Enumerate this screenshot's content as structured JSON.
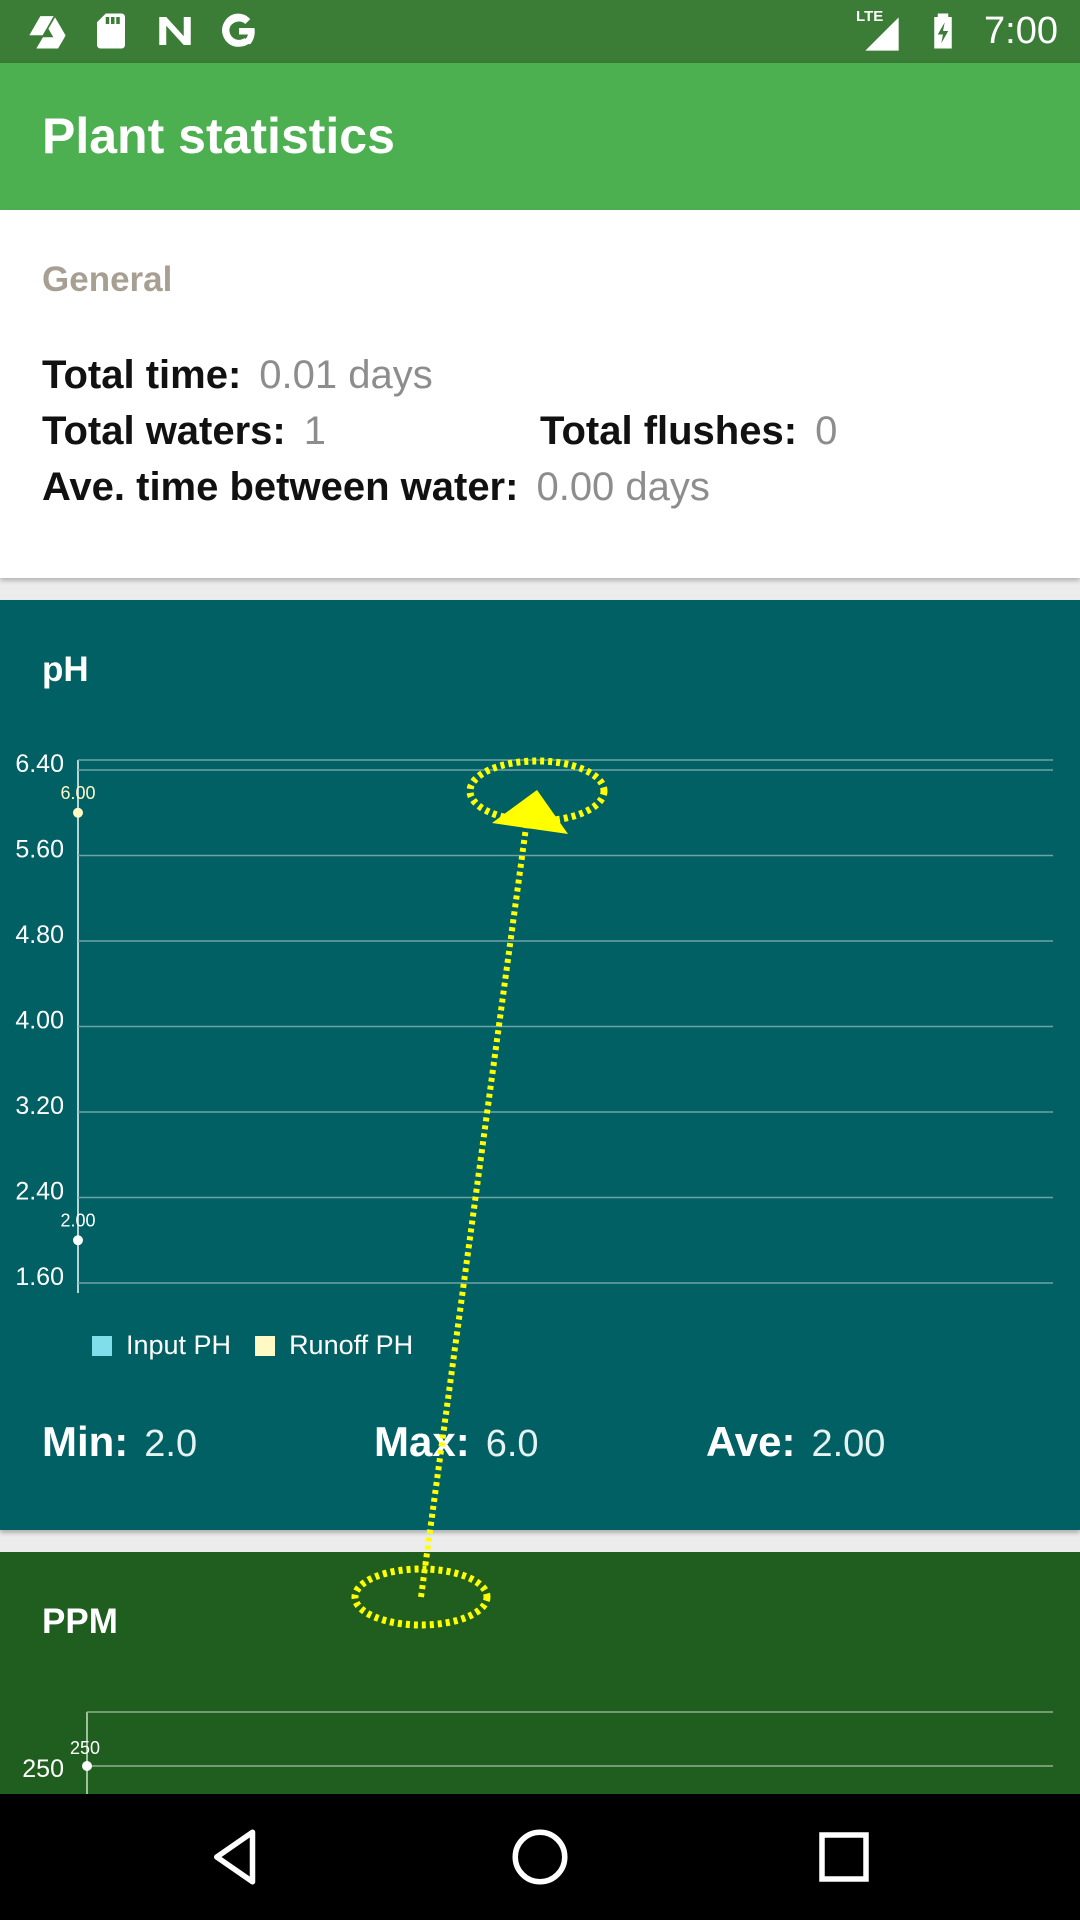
{
  "status_bar": {
    "icons_left": [
      "drive-icon",
      "sd-card-icon",
      "n-logo-icon",
      "google-icon"
    ],
    "network": "LTE",
    "time": "7:00"
  },
  "app_bar": {
    "title": "Plant statistics"
  },
  "general": {
    "section_label": "General",
    "total_time": {
      "label": "Total time:",
      "value": "0.01 days"
    },
    "total_waters": {
      "label": "Total waters:",
      "value": "1"
    },
    "total_flushes": {
      "label": "Total flushes:",
      "value": "0"
    },
    "ave_time": {
      "label": "Ave. time between water:",
      "value": "0.00 days"
    }
  },
  "ph_card": {
    "title": "pH",
    "legend": [
      {
        "name": "Input PH",
        "color": "#80deea"
      },
      {
        "name": "Runoff PH",
        "color": "#fff9c4"
      }
    ],
    "summary": {
      "min_label": "Min:",
      "min_value": "2.0",
      "max_label": "Max:",
      "max_value": "6.0",
      "ave_label": "Ave:",
      "ave_value": "2.00"
    }
  },
  "ppm_card": {
    "title": "PPM",
    "y_tick": "250",
    "point_label": "250"
  },
  "chart_data": [
    {
      "type": "scatter",
      "title": "pH",
      "y_ticks": [
        "1.60",
        "2.40",
        "3.20",
        "4.00",
        "4.80",
        "5.60",
        "6.40"
      ],
      "ylim": [
        1.6,
        6.4
      ],
      "grid": true,
      "legend_position": "bottom-left",
      "series": [
        {
          "name": "Input PH",
          "color": "#80deea",
          "points": [
            {
              "y": 2.0,
              "label": "2.00"
            }
          ]
        },
        {
          "name": "Runoff PH",
          "color": "#fff9c4",
          "points": [
            {
              "y": 6.0,
              "label": "6.00"
            }
          ]
        }
      ]
    },
    {
      "type": "line",
      "title": "PPM",
      "y_ticks": [
        "250"
      ],
      "series": [
        {
          "points": [
            {
              "y": 250,
              "label": "250"
            }
          ]
        }
      ]
    }
  ],
  "colors": {
    "status_bar": "#3b7d36",
    "app_bar": "#4caf50",
    "ph_card": "#006064",
    "ppm_card": "#1f5e1f",
    "annotation": "#ffff00"
  },
  "nav_bar": {
    "icons": [
      "back-icon",
      "home-icon",
      "recents-icon"
    ]
  }
}
